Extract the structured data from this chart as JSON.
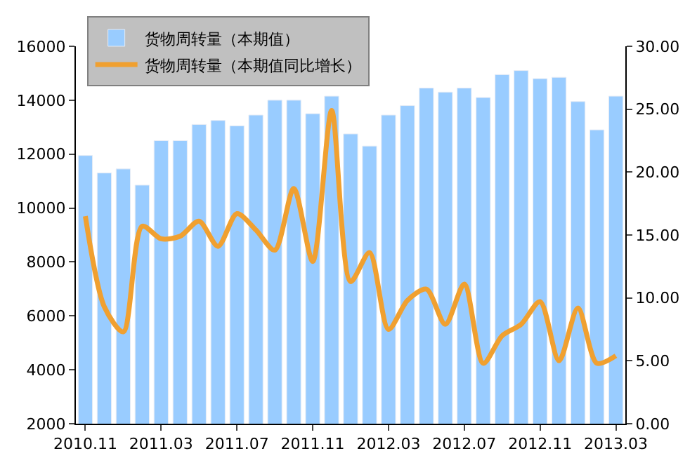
{
  "chart_data": {
    "type": "bar",
    "categories": [
      "2010.11",
      null,
      null,
      null,
      "2011.03",
      null,
      null,
      null,
      "2011.07",
      null,
      null,
      null,
      "2011.11",
      null,
      null,
      null,
      "2012.03",
      null,
      null,
      null,
      "2012.07",
      null,
      null,
      null,
      "2012.11",
      null,
      null,
      null,
      "2013.03"
    ],
    "series": [
      {
        "name": "货物周转量（本期值）",
        "color": "#99ccff",
        "values": [
          11950,
          11300,
          11450,
          10850,
          12500,
          12500,
          13100,
          13250,
          13050,
          13450,
          14000,
          14000,
          13500,
          14150,
          12750,
          12300,
          13450,
          13800,
          14450,
          14300,
          14450,
          14100,
          14950,
          15100,
          14800,
          14850,
          13950,
          12900,
          14150
        ]
      },
      {
        "name": "货物周转量（本期值同比增长）",
        "type": "line",
        "axis": "y2",
        "color": "#f0a030",
        "values": [
          16.5,
          9.3,
          7.3,
          15.7,
          14.7,
          14.9,
          16.1,
          14.1,
          16.7,
          15.4,
          13.8,
          18.7,
          12.9,
          24.9,
          11.3,
          13.6,
          7.5,
          9.8,
          10.7,
          7.9,
          11.1,
          4.8,
          7.0,
          7.9,
          9.7,
          5.0,
          9.2,
          4.8,
          5.4
        ]
      }
    ],
    "ylim": [
      2000,
      16000
    ],
    "yticks": [
      2000,
      4000,
      6000,
      8000,
      10000,
      12000,
      14000,
      16000
    ],
    "y2lim": [
      0,
      30
    ],
    "y2ticks": [
      {
        "value": 0,
        "label": "0.00"
      },
      {
        "value": 5,
        "label": "5.00"
      },
      {
        "value": 10,
        "label": "10.00"
      },
      {
        "value": 15,
        "label": "15.00"
      },
      {
        "value": 20,
        "label": "20.00"
      },
      {
        "value": 25,
        "label": "25.00"
      },
      {
        "value": 30,
        "label": "30.00"
      }
    ],
    "legend": "top left",
    "marker": "none",
    "line_style": "solid"
  }
}
